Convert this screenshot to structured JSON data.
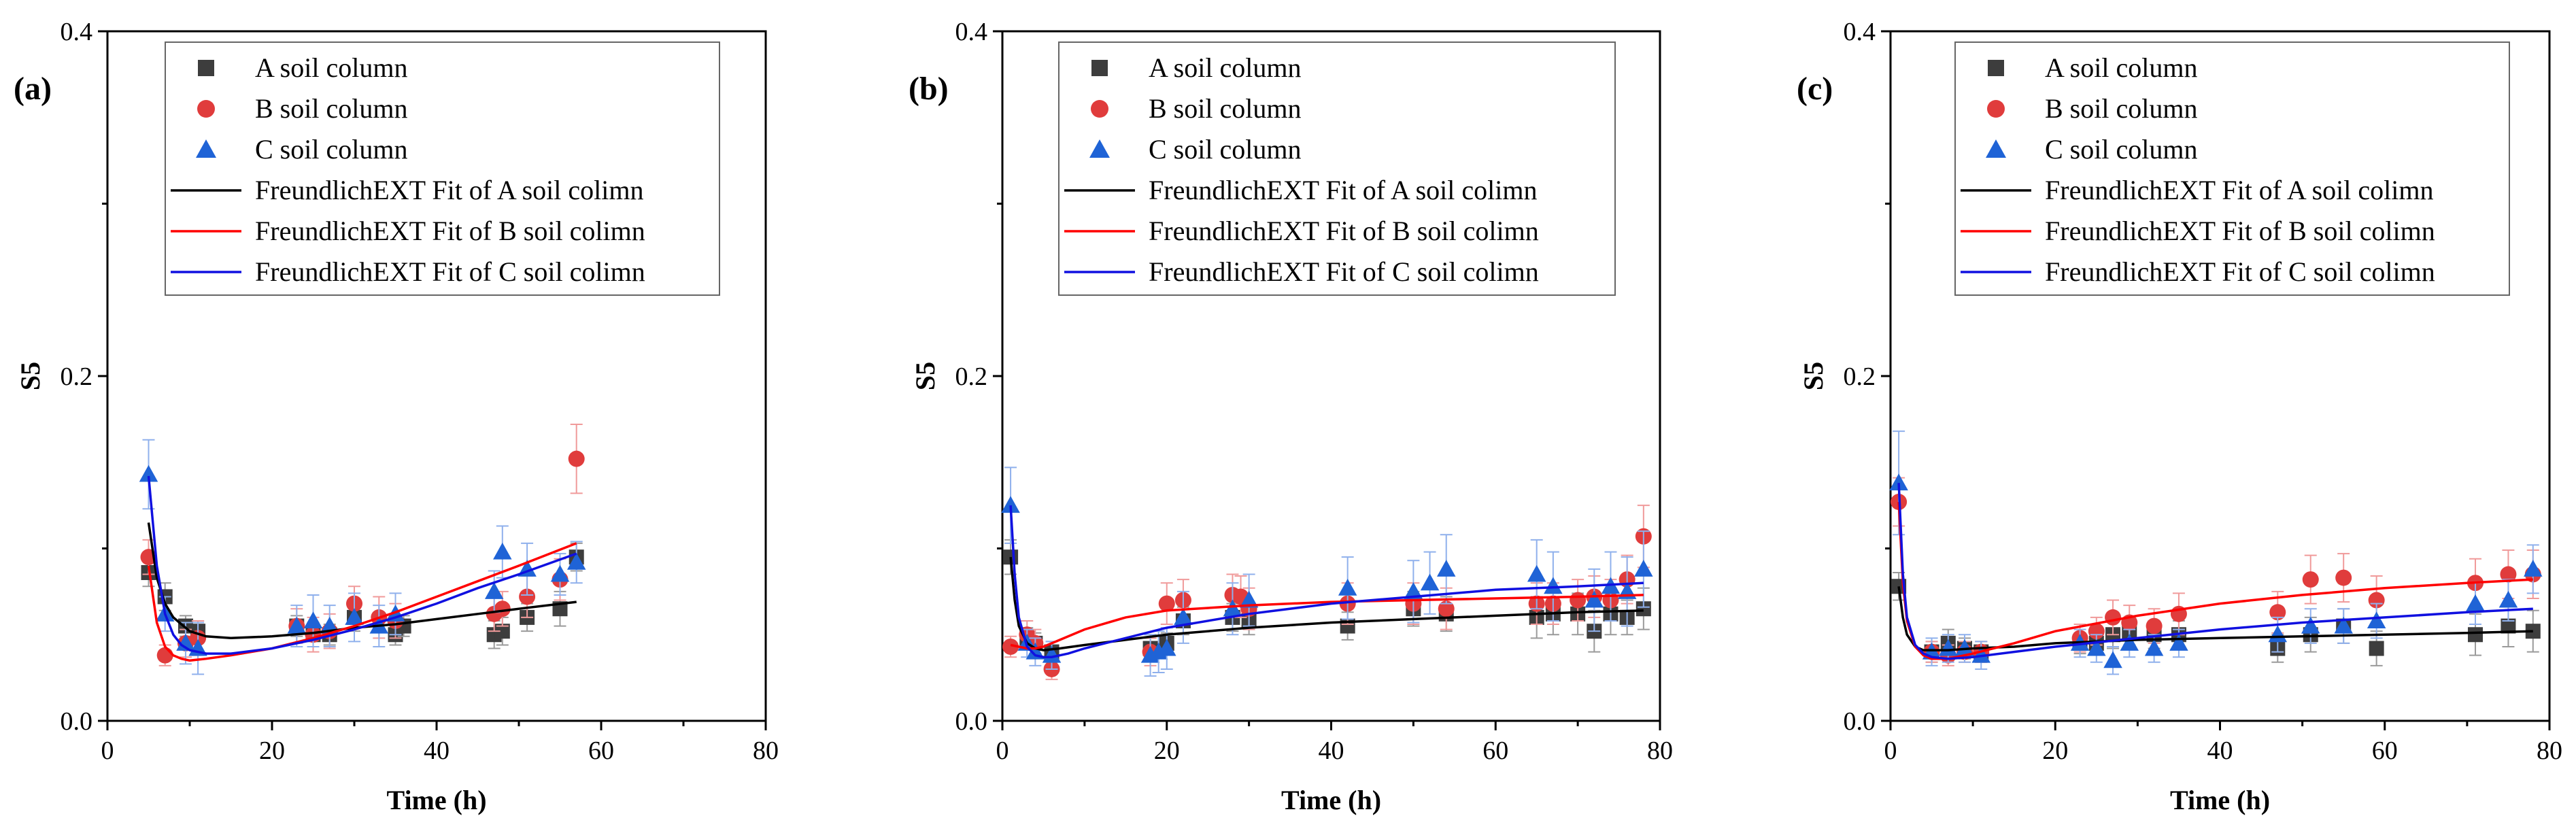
{
  "colors": {
    "A": "#3d3d3d",
    "B": "#e03c3c",
    "C": "#1f63d6",
    "fitA": "#000000",
    "fitB": "#ff0000",
    "fitC": "#1010e0",
    "errA": "#9a9a9a",
    "errB": "#f09a9a",
    "errC": "#8fb0ec"
  },
  "icons": {
    "A": "square-marker-icon",
    "B": "circle-marker-icon",
    "C": "triangle-marker-icon"
  },
  "chart_data": [
    {
      "type": "scatter",
      "panel_label": "(a)",
      "xlabel": "Time (h)",
      "ylabel": "S5",
      "xlim": [
        0,
        80
      ],
      "ylim": [
        0,
        0.4
      ],
      "xticks": [
        0,
        20,
        40,
        60,
        80
      ],
      "xtick_labels": [
        "0",
        "20",
        "40",
        "60",
        "80"
      ],
      "yticks": [
        0,
        0.2,
        0.4
      ],
      "ytick_labels": [
        "0.0",
        "0.2",
        "0.4"
      ],
      "legend_position": "top-left",
      "legend": [
        "A soil column",
        "B soil column",
        "C soil column",
        "FreundlichEXT Fit of A soil colimn",
        "FreundlichEXT Fit of B soil colimn",
        "FreundlichEXT Fit of C soil colimn"
      ],
      "series": [
        {
          "name": "A soil column",
          "x": [
            5,
            7,
            9.5,
            11,
            23,
            25,
            27,
            30,
            35,
            36,
            47,
            48,
            51,
            55,
            57
          ],
          "y": [
            0.086,
            0.072,
            0.055,
            0.052,
            0.055,
            0.05,
            0.05,
            0.06,
            0.05,
            0.055,
            0.05,
            0.052,
            0.06,
            0.065,
            0.095
          ],
          "err": [
            0.008,
            0.008,
            0.006,
            0.006,
            0.006,
            0.007,
            0.006,
            0.008,
            0.006,
            0.006,
            0.008,
            0.008,
            0.008,
            0.01,
            0.008
          ]
        },
        {
          "name": "B soil column",
          "x": [
            5,
            7,
            9.5,
            11,
            23,
            25,
            27,
            30,
            33,
            35,
            47,
            48,
            51,
            55,
            57
          ],
          "y": [
            0.095,
            0.038,
            0.045,
            0.048,
            0.055,
            0.05,
            0.052,
            0.068,
            0.06,
            0.058,
            0.062,
            0.065,
            0.072,
            0.082,
            0.152
          ],
          "err": [
            0.01,
            0.006,
            0.008,
            0.01,
            0.01,
            0.01,
            0.01,
            0.01,
            0.012,
            0.01,
            0.01,
            0.01,
            0.012,
            0.012,
            0.02
          ]
        },
        {
          "name": "C soil column",
          "x": [
            5,
            7,
            9.5,
            11,
            23,
            25,
            27,
            30,
            33,
            35,
            47,
            48,
            51,
            55,
            57
          ],
          "y": [
            0.143,
            0.062,
            0.045,
            0.042,
            0.055,
            0.058,
            0.055,
            0.06,
            0.055,
            0.062,
            0.075,
            0.098,
            0.088,
            0.085,
            0.092
          ],
          "err": [
            0.02,
            0.01,
            0.012,
            0.015,
            0.012,
            0.015,
            0.012,
            0.014,
            0.012,
            0.012,
            0.012,
            0.015,
            0.015,
            0.012,
            0.012
          ]
        }
      ],
      "fits": [
        {
          "name": "FreundlichEXT Fit of A soil colimn",
          "x": [
            5,
            6,
            7,
            8,
            10,
            12,
            15,
            20,
            25,
            30,
            35,
            40,
            45,
            50,
            57
          ],
          "y": [
            0.115,
            0.083,
            0.068,
            0.06,
            0.052,
            0.049,
            0.048,
            0.049,
            0.051,
            0.054,
            0.056,
            0.059,
            0.062,
            0.065,
            0.069
          ]
        },
        {
          "name": "FreundlichEXT Fit of B soil colimn",
          "x": [
            5,
            6,
            7,
            8,
            9,
            10,
            12,
            15,
            20,
            25,
            30,
            35,
            40,
            45,
            50,
            57
          ],
          "y": [
            0.09,
            0.057,
            0.043,
            0.038,
            0.036,
            0.035,
            0.036,
            0.038,
            0.042,
            0.048,
            0.055,
            0.063,
            0.072,
            0.081,
            0.09,
            0.103
          ]
        },
        {
          "name": "FreundlichEXT Fit of C soil colimn",
          "x": [
            5,
            6,
            7,
            8,
            9,
            10,
            12,
            15,
            20,
            25,
            30,
            35,
            40,
            45,
            50,
            57
          ],
          "y": [
            0.142,
            0.09,
            0.062,
            0.05,
            0.044,
            0.041,
            0.039,
            0.039,
            0.042,
            0.047,
            0.053,
            0.06,
            0.068,
            0.077,
            0.085,
            0.097
          ]
        }
      ]
    },
    {
      "type": "scatter",
      "panel_label": "(b)",
      "xlabel": "Time (h)",
      "ylabel": "S5",
      "xlim": [
        0,
        80
      ],
      "ylim": [
        0,
        0.4
      ],
      "xticks": [
        0,
        20,
        40,
        60,
        80
      ],
      "xtick_labels": [
        "0",
        "20",
        "40",
        "60",
        "80"
      ],
      "yticks": [
        0,
        0.2,
        0.4
      ],
      "ytick_labels": [
        "0.0",
        "0.2",
        "0.4"
      ],
      "legend_position": "top-center",
      "legend": [
        "A soil column",
        "B soil column",
        "C soil column",
        "FreundlichEXT Fit of A soil colimn",
        "FreundlichEXT Fit of B soil colimn",
        "FreundlichEXT Fit of C soil colimn"
      ],
      "series": [
        {
          "name": "A soil column",
          "x": [
            1,
            3,
            4,
            6,
            18,
            20,
            22,
            28,
            30,
            42,
            50,
            54,
            65,
            67,
            70,
            72,
            74,
            76,
            78
          ],
          "y": [
            0.095,
            0.048,
            0.045,
            0.04,
            0.042,
            0.045,
            0.058,
            0.06,
            0.058,
            0.055,
            0.065,
            0.062,
            0.06,
            0.062,
            0.062,
            0.052,
            0.062,
            0.06,
            0.065
          ],
          "err": [
            0.01,
            0.006,
            0.006,
            0.006,
            0.006,
            0.006,
            0.008,
            0.008,
            0.008,
            0.008,
            0.01,
            0.01,
            0.012,
            0.012,
            0.012,
            0.012,
            0.012,
            0.01,
            0.012
          ]
        },
        {
          "name": "B soil column",
          "x": [
            1,
            3,
            4,
            6,
            18,
            20,
            22,
            28,
            29,
            30,
            42,
            50,
            54,
            65,
            67,
            70,
            72,
            74,
            76,
            78
          ],
          "y": [
            0.043,
            0.05,
            0.045,
            0.03,
            0.04,
            0.068,
            0.07,
            0.073,
            0.072,
            0.065,
            0.068,
            0.068,
            0.065,
            0.068,
            0.068,
            0.07,
            0.072,
            0.07,
            0.082,
            0.107
          ],
          "err": [
            0.006,
            0.008,
            0.008,
            0.006,
            0.008,
            0.012,
            0.012,
            0.012,
            0.012,
            0.012,
            0.012,
            0.012,
            0.012,
            0.012,
            0.012,
            0.012,
            0.012,
            0.012,
            0.014,
            0.018
          ]
        },
        {
          "name": "C soil column",
          "x": [
            1,
            3,
            4,
            6,
            18,
            19,
            20,
            22,
            28,
            30,
            42,
            50,
            52,
            54,
            65,
            67,
            72,
            74,
            76,
            78
          ],
          "y": [
            0.125,
            0.045,
            0.04,
            0.038,
            0.038,
            0.04,
            0.042,
            0.06,
            0.065,
            0.07,
            0.077,
            0.075,
            0.08,
            0.088,
            0.085,
            0.078,
            0.07,
            0.078,
            0.075,
            0.088
          ],
          "err": [
            0.022,
            0.008,
            0.008,
            0.008,
            0.012,
            0.012,
            0.012,
            0.015,
            0.015,
            0.015,
            0.018,
            0.018,
            0.018,
            0.02,
            0.02,
            0.02,
            0.018,
            0.02,
            0.02,
            0.022
          ]
        }
      ],
      "fits": [
        {
          "name": "FreundlichEXT Fit of A soil colimn",
          "x": [
            1,
            1.5,
            2,
            3,
            4,
            5,
            7,
            10,
            15,
            20,
            30,
            40,
            50,
            60,
            70,
            78
          ],
          "y": [
            0.095,
            0.07,
            0.055,
            0.045,
            0.042,
            0.041,
            0.042,
            0.044,
            0.047,
            0.05,
            0.054,
            0.057,
            0.059,
            0.061,
            0.063,
            0.064
          ]
        },
        {
          "name": "FreundlichEXT Fit of B soil colimn",
          "x": [
            1,
            2,
            3,
            4,
            5,
            7,
            10,
            15,
            20,
            30,
            40,
            50,
            60,
            70,
            78
          ],
          "y": [
            0.044,
            0.043,
            0.042,
            0.042,
            0.043,
            0.047,
            0.053,
            0.06,
            0.064,
            0.067,
            0.069,
            0.07,
            0.071,
            0.072,
            0.073
          ]
        },
        {
          "name": "FreundlichEXT Fit of C soil colimn",
          "x": [
            1,
            1.5,
            2,
            3,
            4,
            5,
            6,
            8,
            10,
            15,
            20,
            30,
            40,
            50,
            60,
            70,
            78
          ],
          "y": [
            0.125,
            0.085,
            0.06,
            0.043,
            0.038,
            0.037,
            0.037,
            0.039,
            0.042,
            0.048,
            0.054,
            0.062,
            0.068,
            0.072,
            0.076,
            0.078,
            0.08
          ]
        }
      ]
    },
    {
      "type": "scatter",
      "panel_label": "(c)",
      "xlabel": "Time (h)",
      "ylabel": "S5",
      "xlim": [
        0,
        80
      ],
      "ylim": [
        0,
        0.4
      ],
      "xticks": [
        0,
        20,
        40,
        60,
        80
      ],
      "xtick_labels": [
        "0",
        "20",
        "40",
        "60",
        "80"
      ],
      "yticks": [
        0,
        0.2,
        0.4
      ],
      "ytick_labels": [
        "0.0",
        "0.2",
        "0.4"
      ],
      "legend_position": "top-center",
      "legend": [
        "A soil column",
        "B soil column",
        "C soil column",
        "FreundlichEXT Fit of A soil colimn",
        "FreundlichEXT Fit of B soil colimn",
        "FreundlichEXT Fit of C soil colimn"
      ],
      "series": [
        {
          "name": "A soil column",
          "x": [
            1,
            5,
            7,
            9,
            11,
            23,
            25,
            27,
            29,
            32,
            35,
            47,
            51,
            55,
            59,
            71,
            75,
            78
          ],
          "y": [
            0.078,
            0.04,
            0.045,
            0.042,
            0.04,
            0.045,
            0.045,
            0.05,
            0.052,
            0.05,
            0.05,
            0.042,
            0.05,
            0.055,
            0.042,
            0.05,
            0.055,
            0.052
          ],
          "err": [
            0.008,
            0.006,
            0.008,
            0.006,
            0.006,
            0.006,
            0.006,
            0.008,
            0.008,
            0.008,
            0.008,
            0.008,
            0.01,
            0.01,
            0.01,
            0.012,
            0.012,
            0.012
          ]
        },
        {
          "name": "B soil column",
          "x": [
            1,
            5,
            7,
            9,
            11,
            23,
            25,
            27,
            29,
            32,
            35,
            47,
            51,
            55,
            59,
            71,
            75,
            78
          ],
          "y": [
            0.127,
            0.04,
            0.038,
            0.04,
            0.04,
            0.048,
            0.052,
            0.06,
            0.057,
            0.055,
            0.062,
            0.063,
            0.082,
            0.083,
            0.07,
            0.08,
            0.085,
            0.085
          ],
          "err": [
            0.014,
            0.006,
            0.006,
            0.006,
            0.006,
            0.008,
            0.008,
            0.01,
            0.01,
            0.01,
            0.012,
            0.012,
            0.014,
            0.014,
            0.014,
            0.014,
            0.014,
            0.014
          ]
        },
        {
          "name": "C soil column",
          "x": [
            1,
            5,
            7,
            9,
            11,
            23,
            25,
            27,
            29,
            32,
            35,
            47,
            51,
            55,
            59,
            71,
            75,
            78
          ],
          "y": [
            0.138,
            0.04,
            0.042,
            0.042,
            0.038,
            0.045,
            0.042,
            0.035,
            0.045,
            0.042,
            0.045,
            0.05,
            0.055,
            0.055,
            0.058,
            0.068,
            0.07,
            0.088
          ],
          "err": [
            0.03,
            0.008,
            0.008,
            0.008,
            0.008,
            0.008,
            0.008,
            0.008,
            0.008,
            0.008,
            0.008,
            0.01,
            0.01,
            0.01,
            0.01,
            0.012,
            0.012,
            0.014
          ]
        }
      ],
      "fits": [
        {
          "name": "FreundlichEXT Fit of A soil colimn",
          "x": [
            1,
            1.5,
            2,
            3,
            4,
            5,
            7,
            10,
            15,
            20,
            30,
            40,
            50,
            60,
            70,
            78
          ],
          "y": [
            0.078,
            0.06,
            0.05,
            0.043,
            0.041,
            0.041,
            0.041,
            0.042,
            0.043,
            0.045,
            0.047,
            0.048,
            0.049,
            0.05,
            0.051,
            0.052
          ]
        },
        {
          "name": "FreundlichEXT Fit of B soil colimn",
          "x": [
            1,
            1.5,
            2,
            3,
            4,
            5,
            7,
            10,
            15,
            20,
            30,
            40,
            50,
            60,
            70,
            78
          ],
          "y": [
            0.127,
            0.08,
            0.058,
            0.043,
            0.038,
            0.036,
            0.036,
            0.039,
            0.045,
            0.052,
            0.061,
            0.068,
            0.073,
            0.077,
            0.08,
            0.082
          ]
        },
        {
          "name": "FreundlichEXT Fit of C soil colimn",
          "x": [
            1,
            1.5,
            2,
            3,
            4,
            5,
            7,
            10,
            15,
            20,
            30,
            40,
            50,
            60,
            70,
            78
          ],
          "y": [
            0.138,
            0.085,
            0.06,
            0.044,
            0.039,
            0.037,
            0.036,
            0.037,
            0.04,
            0.043,
            0.048,
            0.053,
            0.057,
            0.06,
            0.063,
            0.065
          ]
        }
      ]
    }
  ]
}
